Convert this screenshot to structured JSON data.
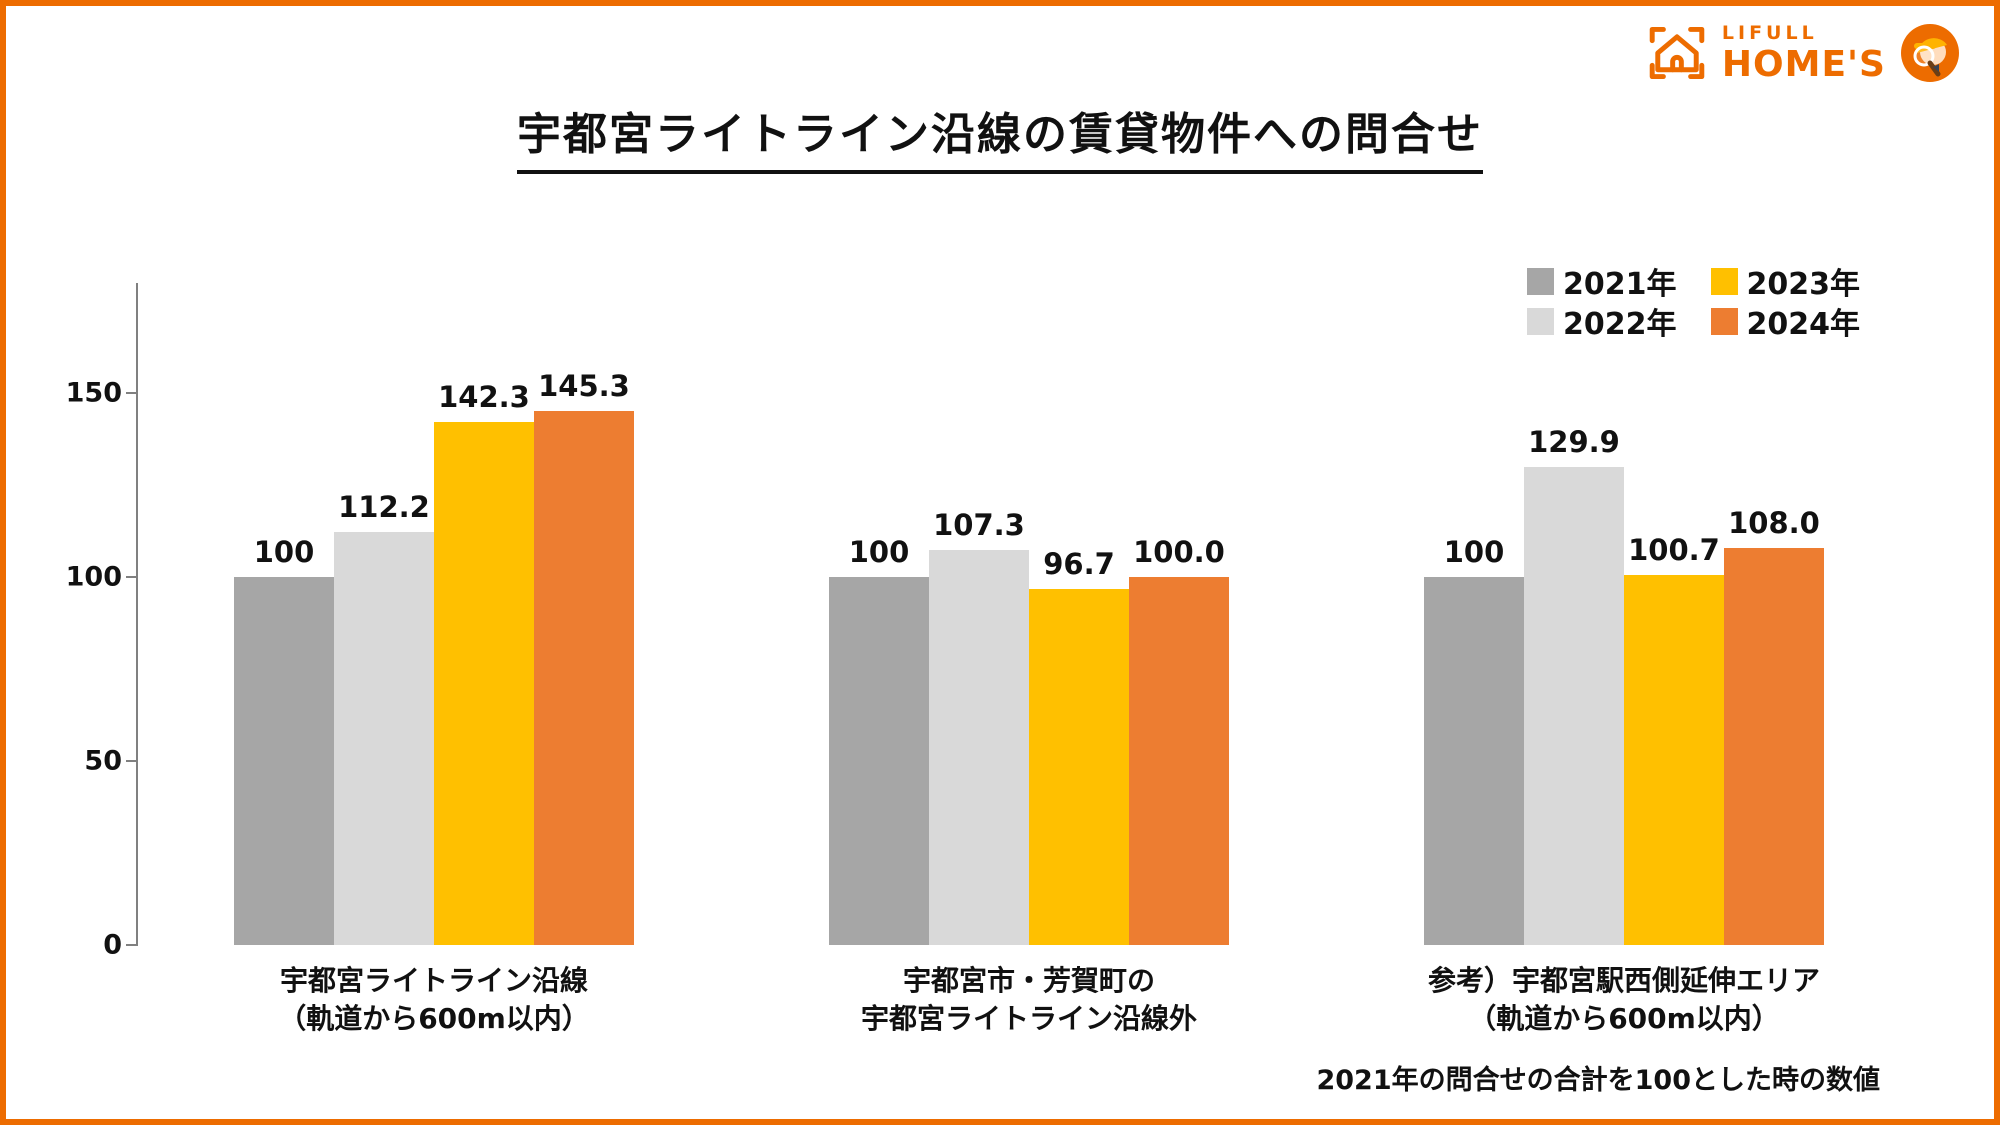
{
  "page": {
    "title": "宇都宮ライトライン沿線の賃貸物件への問合せ",
    "footnote": "2021年の問合せの合計を100とした時の数値",
    "border_color": "#ED6C00"
  },
  "logo": {
    "brand_top": "LIFULL",
    "brand_bottom": "HOME'S",
    "color": "#ED6C00"
  },
  "chart_data": {
    "type": "bar",
    "title": "宇都宮ライトライン沿線の賃貸物件への問合せ",
    "note": "2021年の問合せの合計を100とした時の数値",
    "ylim": [
      0,
      180
    ],
    "yticks": [
      0,
      50,
      100,
      150
    ],
    "axis_color": "#808080",
    "grid": false,
    "legend_position": "top-right",
    "categories": [
      [
        "宇都宮ライトライン沿線",
        "（軌道から600m以内）"
      ],
      [
        "宇都宮市・芳賀町の",
        "宇都宮ライトライン沿線外"
      ],
      [
        "参考）宇都宮駅西側延伸エリア",
        "（軌道から600m以内）"
      ]
    ],
    "series": [
      {
        "name": "2021年",
        "color": "#A6A6A6",
        "values": [
          100,
          100,
          100
        ],
        "labels": [
          "100",
          "100",
          "100"
        ]
      },
      {
        "name": "2022年",
        "color": "#D9D9D9",
        "values": [
          112.2,
          107.3,
          129.9
        ],
        "labels": [
          "112.2",
          "107.3",
          "129.9"
        ]
      },
      {
        "name": "2023年",
        "color": "#FFC000",
        "values": [
          142.3,
          96.7,
          100.7
        ],
        "labels": [
          "142.3",
          "96.7",
          "100.7"
        ]
      },
      {
        "name": "2024年",
        "color": "#ED7D31",
        "values": [
          145.3,
          100.0,
          108.0
        ],
        "labels": [
          "145.3",
          "100.0",
          "108.0"
        ]
      }
    ]
  }
}
